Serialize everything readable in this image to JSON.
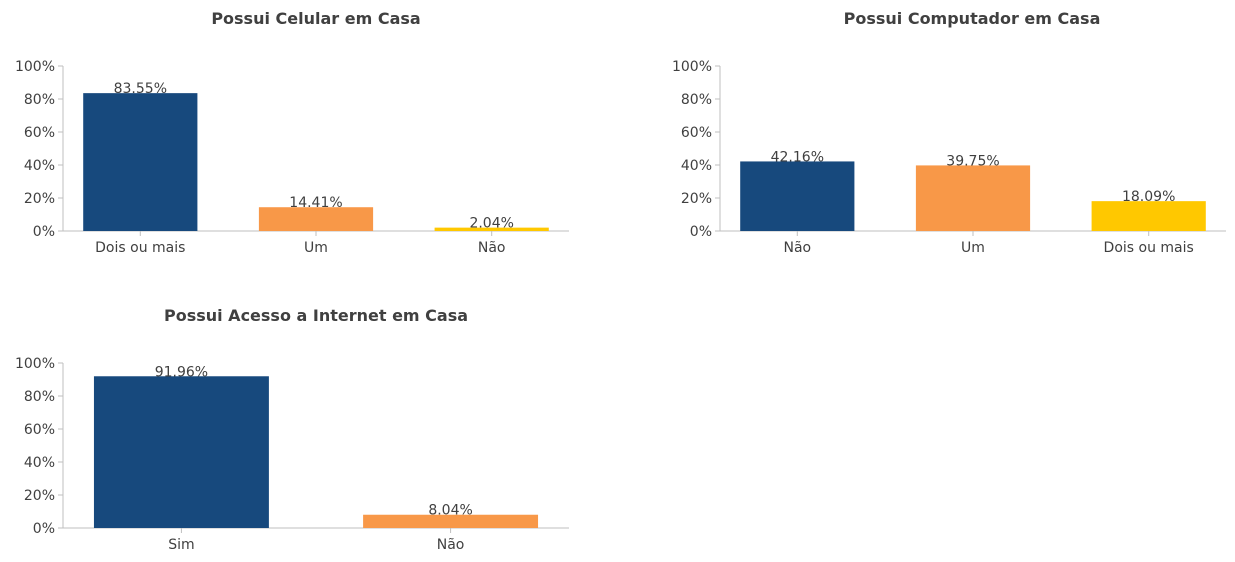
{
  "chart_data": [
    {
      "type": "bar",
      "title": "Possui Celular em Casa",
      "categories": [
        "Dois ou mais",
        "Um",
        "Não"
      ],
      "values": [
        83.55,
        14.41,
        2.04
      ],
      "value_labels": [
        "83.55%",
        "14.41%",
        "2.04%"
      ],
      "colors": [
        "#17497d",
        "#f89848",
        "#ffc800"
      ],
      "ylim": [
        0,
        100
      ],
      "yticks": [
        0,
        20,
        40,
        60,
        80,
        100
      ],
      "ytick_labels": [
        "0%",
        "20%",
        "40%",
        "60%",
        "80%",
        "100%"
      ],
      "grid": false
    },
    {
      "type": "bar",
      "title": "Possui Computador em Casa",
      "categories": [
        "Não",
        "Um",
        "Dois ou mais"
      ],
      "values": [
        42.16,
        39.75,
        18.09
      ],
      "value_labels": [
        "42.16%",
        "39.75%",
        "18.09%"
      ],
      "colors": [
        "#17497d",
        "#f89848",
        "#ffc800"
      ],
      "ylim": [
        0,
        100
      ],
      "yticks": [
        0,
        20,
        40,
        60,
        80,
        100
      ],
      "ytick_labels": [
        "0%",
        "20%",
        "40%",
        "60%",
        "80%",
        "100%"
      ],
      "grid": false
    },
    {
      "type": "bar",
      "title": "Possui Acesso a Internet em Casa",
      "categories": [
        "Sim",
        "Não"
      ],
      "values": [
        91.96,
        8.04
      ],
      "value_labels": [
        "91.96%",
        "8.04%"
      ],
      "colors": [
        "#17497d",
        "#f89848"
      ],
      "ylim": [
        0,
        100
      ],
      "yticks": [
        0,
        20,
        40,
        60,
        80,
        100
      ],
      "ytick_labels": [
        "0%",
        "20%",
        "40%",
        "60%",
        "80%",
        "100%"
      ],
      "grid": false
    }
  ]
}
